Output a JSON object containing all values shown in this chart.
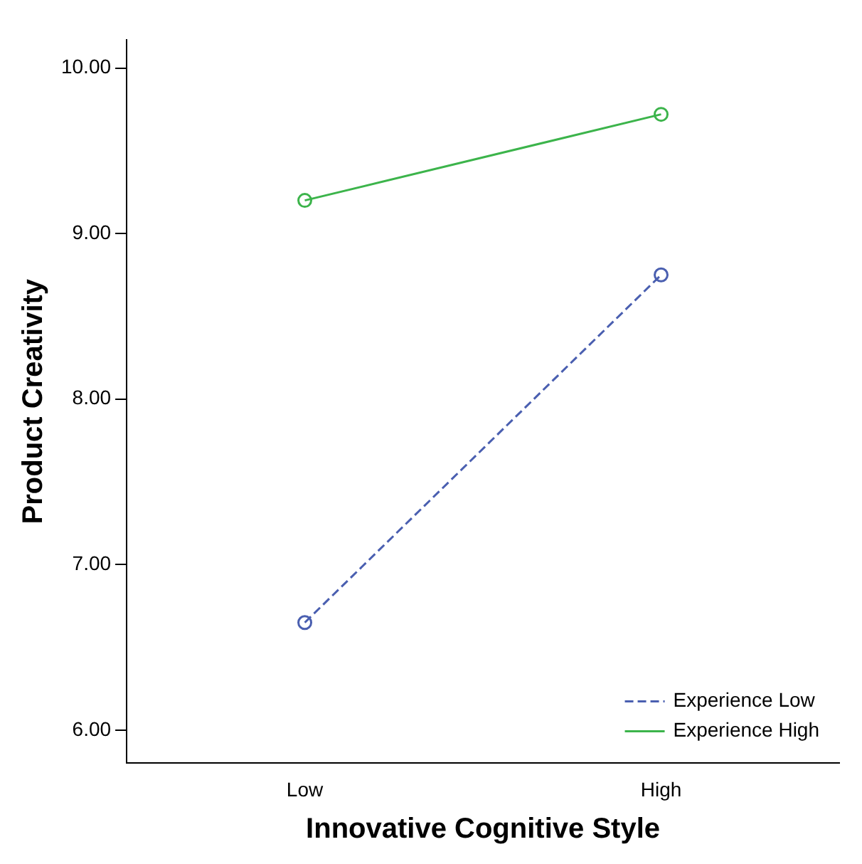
{
  "chart_data": {
    "type": "line",
    "xlabel": "Innovative Cognitive Style",
    "ylabel": "Product Creativity",
    "categories": [
      "Low",
      "High"
    ],
    "series": [
      {
        "name": "Experience Low",
        "color": "#4a5fb0",
        "values": [
          6.65,
          8.75
        ],
        "line_style": "dashed"
      },
      {
        "name": "Experience High",
        "color": "#3cb44b",
        "values": [
          9.2,
          9.72
        ],
        "line_style": "solid"
      }
    ],
    "ylim": [
      5.8,
      10.17
    ],
    "yticks": [
      {
        "value": 6,
        "label": "6.00"
      },
      {
        "value": 7,
        "label": "7.00"
      },
      {
        "value": 8,
        "label": "8.00"
      },
      {
        "value": 9,
        "label": "9.00"
      },
      {
        "value": 10,
        "label": "10.00"
      }
    ],
    "grid": false,
    "legend": "bottom right",
    "marker": "circle"
  }
}
